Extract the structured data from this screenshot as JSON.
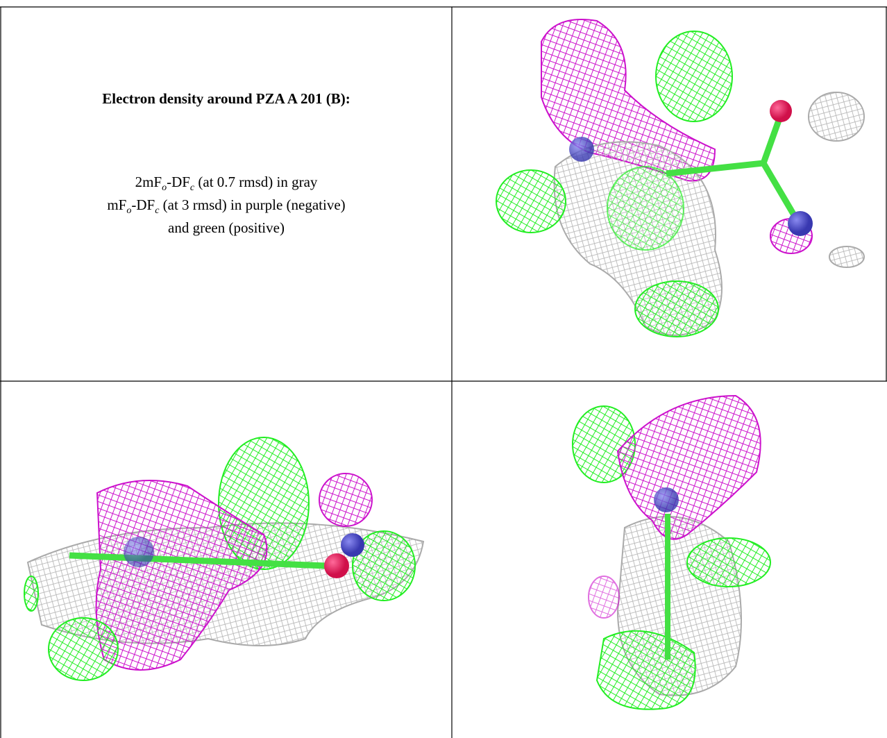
{
  "caption": {
    "title": "Electron density around PZA A 201 (B):",
    "lines": [
      [
        "2mF",
        "o",
        "-DF",
        "c",
        " (at 0.7 rmsd) in gray"
      ],
      [
        "mF",
        "o",
        "-DF",
        "c",
        " (at 3 rmsd) in purple (negative)"
      ],
      [
        "and green (positive)"
      ]
    ]
  }
}
